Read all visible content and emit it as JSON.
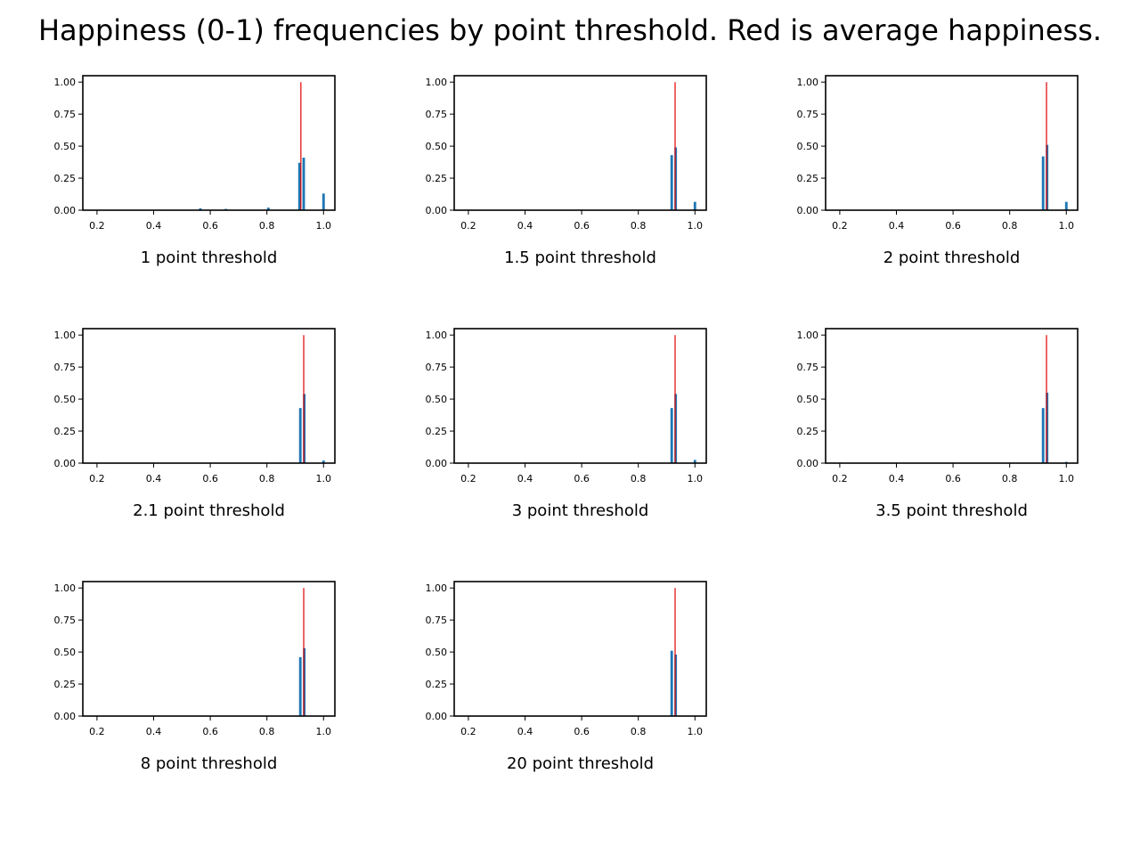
{
  "title": "Happiness (0-1) frequencies by point threshold. Red is average happiness.",
  "colors": {
    "bars": "#1f77b4",
    "average": "#e00000",
    "axes": "#000000"
  },
  "chart_data": [
    {
      "type": "bar",
      "xlabel": "1 point threshold",
      "xlim": [
        0.15,
        1.04
      ],
      "ylim": [
        0,
        1.05
      ],
      "xticks": [
        "0.2",
        "0.4",
        "0.6",
        "0.8",
        "1.0"
      ],
      "yticks": [
        "0.00",
        "0.25",
        "0.50",
        "0.75",
        "1.00"
      ],
      "bin_width": 0.01,
      "bars": [
        {
          "x": 0.565,
          "y": 0.015
        },
        {
          "x": 0.655,
          "y": 0.01
        },
        {
          "x": 0.805,
          "y": 0.02
        },
        {
          "x": 0.915,
          "y": 0.37
        },
        {
          "x": 0.93,
          "y": 0.41
        },
        {
          "x": 1.0,
          "y": 0.13
        }
      ],
      "average": 0.92
    },
    {
      "type": "bar",
      "xlabel": "1.5 point threshold",
      "xlim": [
        0.15,
        1.04
      ],
      "ylim": [
        0,
        1.05
      ],
      "xticks": [
        "0.2",
        "0.4",
        "0.6",
        "0.8",
        "1.0"
      ],
      "yticks": [
        "0.00",
        "0.25",
        "0.50",
        "0.75",
        "1.00"
      ],
      "bin_width": 0.01,
      "bars": [
        {
          "x": 0.918,
          "y": 0.43
        },
        {
          "x": 0.932,
          "y": 0.49
        },
        {
          "x": 1.0,
          "y": 0.065
        }
      ],
      "average": 0.93
    },
    {
      "type": "bar",
      "xlabel": "2 point threshold",
      "xlim": [
        0.15,
        1.04
      ],
      "ylim": [
        0,
        1.05
      ],
      "xticks": [
        "0.2",
        "0.4",
        "0.6",
        "0.8",
        "1.0"
      ],
      "yticks": [
        "0.00",
        "0.25",
        "0.50",
        "0.75",
        "1.00"
      ],
      "bin_width": 0.01,
      "bars": [
        {
          "x": 0.918,
          "y": 0.42
        },
        {
          "x": 0.932,
          "y": 0.51
        },
        {
          "x": 1.0,
          "y": 0.065
        }
      ],
      "average": 0.93
    },
    {
      "type": "bar",
      "xlabel": "2.1 point threshold",
      "xlim": [
        0.15,
        1.04
      ],
      "ylim": [
        0,
        1.05
      ],
      "xticks": [
        "0.2",
        "0.4",
        "0.6",
        "0.8",
        "1.0"
      ],
      "yticks": [
        "0.00",
        "0.25",
        "0.50",
        "0.75",
        "1.00"
      ],
      "bin_width": 0.01,
      "bars": [
        {
          "x": 0.918,
          "y": 0.43
        },
        {
          "x": 0.932,
          "y": 0.54
        },
        {
          "x": 1.0,
          "y": 0.02
        }
      ],
      "average": 0.93
    },
    {
      "type": "bar",
      "xlabel": "3 point threshold",
      "xlim": [
        0.15,
        1.04
      ],
      "ylim": [
        0,
        1.05
      ],
      "xticks": [
        "0.2",
        "0.4",
        "0.6",
        "0.8",
        "1.0"
      ],
      "yticks": [
        "0.00",
        "0.25",
        "0.50",
        "0.75",
        "1.00"
      ],
      "bin_width": 0.01,
      "bars": [
        {
          "x": 0.918,
          "y": 0.43
        },
        {
          "x": 0.932,
          "y": 0.54
        },
        {
          "x": 1.0,
          "y": 0.025
        }
      ],
      "average": 0.93
    },
    {
      "type": "bar",
      "xlabel": "3.5 point threshold",
      "xlim": [
        0.15,
        1.04
      ],
      "ylim": [
        0,
        1.05
      ],
      "xticks": [
        "0.2",
        "0.4",
        "0.6",
        "0.8",
        "1.0"
      ],
      "yticks": [
        "0.00",
        "0.25",
        "0.50",
        "0.75",
        "1.00"
      ],
      "bin_width": 0.01,
      "bars": [
        {
          "x": 0.918,
          "y": 0.43
        },
        {
          "x": 0.932,
          "y": 0.55
        },
        {
          "x": 1.0,
          "y": 0.01
        }
      ],
      "average": 0.93
    },
    {
      "type": "bar",
      "xlabel": "8 point threshold",
      "xlim": [
        0.15,
        1.04
      ],
      "ylim": [
        0,
        1.05
      ],
      "xticks": [
        "0.2",
        "0.4",
        "0.6",
        "0.8",
        "1.0"
      ],
      "yticks": [
        "0.00",
        "0.25",
        "0.50",
        "0.75",
        "1.00"
      ],
      "bin_width": 0.01,
      "bars": [
        {
          "x": 0.918,
          "y": 0.46
        },
        {
          "x": 0.932,
          "y": 0.53
        }
      ],
      "average": 0.93
    },
    {
      "type": "bar",
      "xlabel": "20 point threshold",
      "xlim": [
        0.15,
        1.04
      ],
      "ylim": [
        0,
        1.05
      ],
      "xticks": [
        "0.2",
        "0.4",
        "0.6",
        "0.8",
        "1.0"
      ],
      "yticks": [
        "0.00",
        "0.25",
        "0.50",
        "0.75",
        "1.00"
      ],
      "bin_width": 0.01,
      "bars": [
        {
          "x": 0.918,
          "y": 0.51
        },
        {
          "x": 0.932,
          "y": 0.48
        }
      ],
      "average": 0.93
    }
  ]
}
